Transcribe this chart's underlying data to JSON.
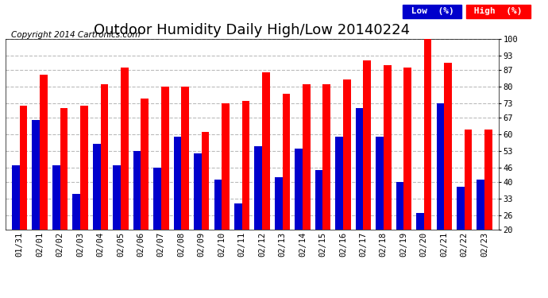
{
  "title": "Outdoor Humidity Daily High/Low 20140224",
  "copyright": "Copyright 2014 Cartronics.com",
  "legend_low": "Low  (%)",
  "legend_high": "High  (%)",
  "categories": [
    "01/31",
    "02/01",
    "02/02",
    "02/03",
    "02/04",
    "02/05",
    "02/06",
    "02/07",
    "02/08",
    "02/09",
    "02/10",
    "02/11",
    "02/12",
    "02/13",
    "02/14",
    "02/15",
    "02/16",
    "02/17",
    "02/18",
    "02/19",
    "02/20",
    "02/21",
    "02/22",
    "02/23"
  ],
  "high_values": [
    72,
    85,
    71,
    72,
    81,
    88,
    75,
    80,
    80,
    61,
    73,
    74,
    86,
    77,
    81,
    81,
    83,
    91,
    89,
    88,
    100,
    90,
    62,
    62
  ],
  "low_values": [
    47,
    66,
    47,
    35,
    56,
    47,
    53,
    46,
    59,
    52,
    41,
    31,
    55,
    42,
    54,
    45,
    59,
    71,
    59,
    40,
    27,
    73,
    38,
    41
  ],
  "color_high": "#ff0000",
  "color_low": "#0000cc",
  "bg_color": "#ffffff",
  "plot_bg": "#ffffff",
  "grid_color": "#bbbbbb",
  "yticks": [
    20,
    26,
    33,
    40,
    46,
    53,
    60,
    67,
    73,
    80,
    87,
    93,
    100
  ],
  "ylim": [
    20,
    100
  ],
  "title_fontsize": 13,
  "copyright_fontsize": 7.5,
  "tick_fontsize": 7.5,
  "bar_width": 0.38
}
